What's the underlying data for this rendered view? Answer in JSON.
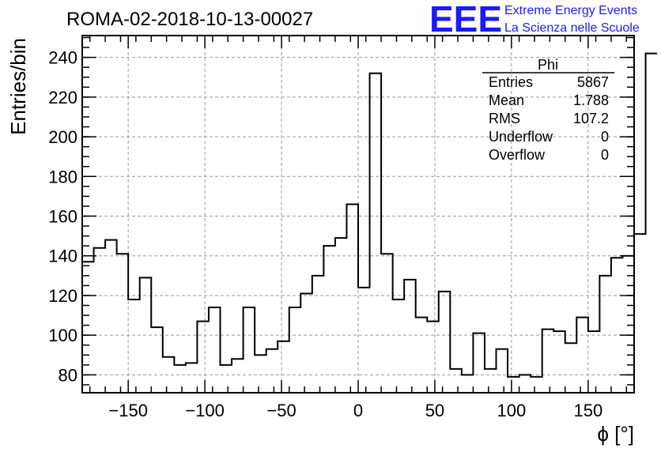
{
  "header": {
    "title": "ROMA-02-2018-10-13-00027",
    "brand_logo": "EEE",
    "brand_line1": "Extreme Energy Events",
    "brand_line2": "La Scienza nelle Scuole",
    "brand_color": "#1a1aff"
  },
  "stats_box": {
    "name": "Phi",
    "rows": [
      {
        "label": "Entries",
        "value": "5867"
      },
      {
        "label": "Mean",
        "value": "1.788"
      },
      {
        "label": "RMS",
        "value": "107.2"
      },
      {
        "label": "Underflow",
        "value": "0"
      },
      {
        "label": "Overflow",
        "value": "0"
      }
    ]
  },
  "chart_data": {
    "type": "histogram",
    "xlabel": "ϕ [°]",
    "ylabel": "Entries/bin",
    "xlim": [
      -180,
      180
    ],
    "ylim": [
      71,
      251
    ],
    "bin_width": 7.5,
    "xticks": [
      -150,
      -100,
      -50,
      0,
      50,
      100,
      150
    ],
    "xtick_labels": [
      "−150",
      "−100",
      "−50",
      "0",
      "50",
      "100",
      "150"
    ],
    "yticks": [
      80,
      100,
      120,
      140,
      160,
      180,
      200,
      220,
      240
    ],
    "grid": true,
    "line_color": "#000000",
    "values": [
      137,
      144,
      148,
      141,
      118,
      129,
      104,
      89,
      85,
      86,
      107,
      114,
      85,
      88,
      114,
      90,
      93,
      97,
      114,
      121,
      130,
      145,
      149,
      166,
      124,
      232,
      141,
      118,
      128,
      109,
      107,
      122,
      83,
      80,
      101,
      83,
      93,
      79,
      80,
      79,
      103,
      102,
      96,
      109,
      102,
      130,
      139,
      140,
      151,
      242
    ]
  }
}
